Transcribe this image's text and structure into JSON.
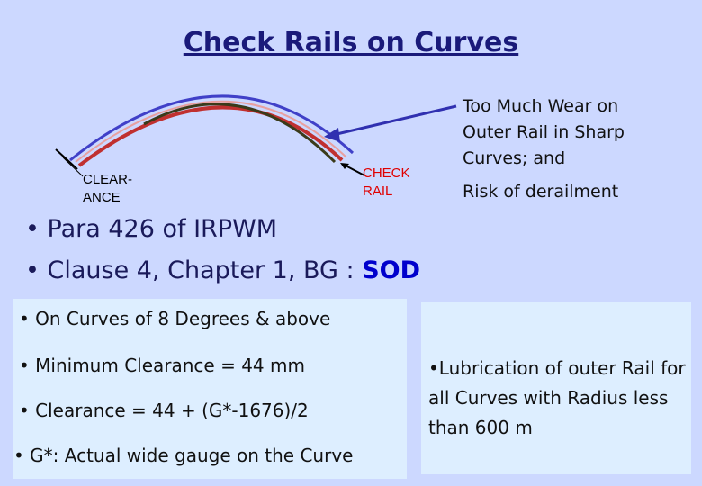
{
  "title": "Check Rails on Curves",
  "diagram": {
    "clearance_label_1": "CLEAR-",
    "clearance_label_2": "ANCE",
    "check_label_1": "CHECK",
    "check_label_2": "RAIL",
    "colors": {
      "outer_rail": "#4040c8",
      "running_rail": "#c03030",
      "check_rail": "#3a3a1a",
      "arrow": "#3030b0"
    }
  },
  "notes": {
    "wear": "Too Much Wear on Outer Rail in Sharp Curves; and",
    "derailment": "Risk of derailment"
  },
  "references": {
    "para": "• Para 426 of IRPWM",
    "clause": "• Clause 4, Chapter 1,   BG : ",
    "sod": "SOD"
  },
  "left_box": {
    "degrees": "• On Curves of 8 Degrees & above",
    "min_clearance": "• Minimum Clearance = 44 mm",
    "formula": "• Clearance = 44 + (G*-1676)/2",
    "gauge_note": "• G*: Actual wide gauge on the Curve"
  },
  "right_box": {
    "lubrication": "•Lubrication of outer Rail for all Curves with Radius less than 600 m"
  }
}
